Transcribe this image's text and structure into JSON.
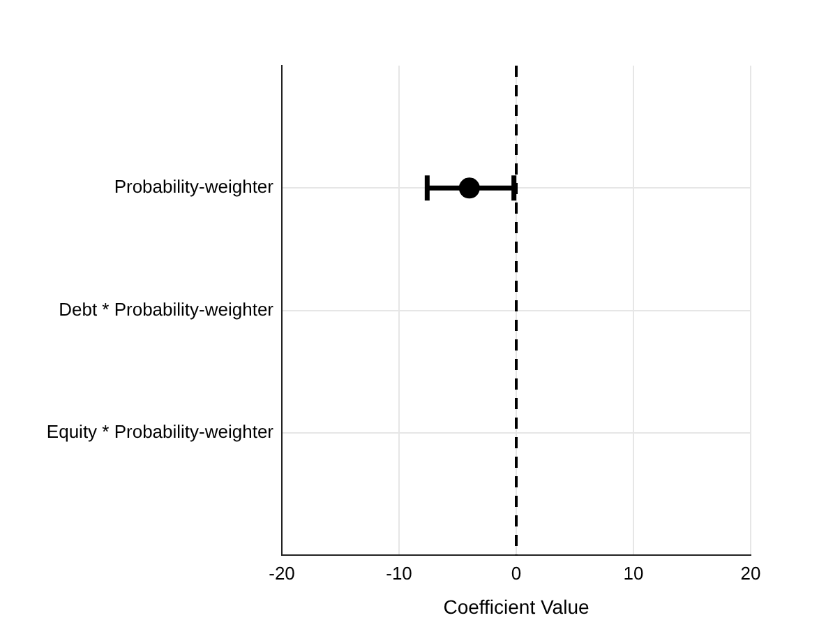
{
  "chart_data": {
    "type": "scatter",
    "orientation": "horizontal",
    "xlabel": "Coefficient Value",
    "categories": [
      "Probability-weighter",
      "Debt * Probability-weighter",
      "Equity * Probability-weighter"
    ],
    "values": [
      -4.0,
      null,
      null
    ],
    "errors": [
      [
        -7.6,
        -0.2
      ],
      null,
      null
    ],
    "color": "#000000",
    "marker": "circle",
    "xlim": [
      -20,
      20
    ],
    "xticks": [
      -20,
      -10,
      0,
      10,
      20
    ],
    "ref_lines": [
      {
        "axis": "x",
        "value": 0,
        "color": "#000000",
        "line_style": "dashed"
      }
    ],
    "grid": true,
    "legend": false
  }
}
